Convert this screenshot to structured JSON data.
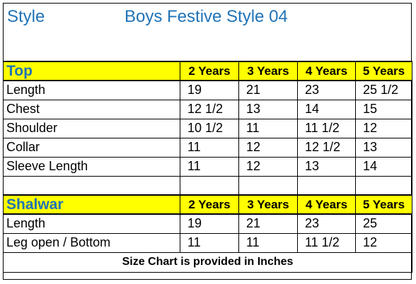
{
  "header": {
    "style_label": "Style",
    "title": "Boys Festive Style 04"
  },
  "sizes": [
    "2 Years",
    "3 Years",
    "4 Years",
    "5 Years"
  ],
  "top": {
    "label": "Top",
    "rows": [
      {
        "name": "Length",
        "values": [
          "19",
          "21",
          "23",
          "25 1/2"
        ]
      },
      {
        "name": "Chest",
        "values": [
          "12 1/2",
          "13",
          "14",
          "15"
        ]
      },
      {
        "name": "Shoulder",
        "values": [
          "10 1/2",
          "11",
          "11 1/2",
          "12"
        ]
      },
      {
        "name": "Collar",
        "values": [
          "11",
          "12",
          "12 1/2",
          "13"
        ]
      },
      {
        "name": "Sleeve Length",
        "values": [
          "11",
          "12",
          "13",
          "14"
        ]
      }
    ]
  },
  "shalwar": {
    "label": "Shalwar",
    "rows": [
      {
        "name": "Length",
        "values": [
          "19",
          "21",
          "23",
          "25"
        ]
      },
      {
        "name": "Leg open / Bottom",
        "values": [
          "11",
          "11",
          "11 1/2",
          "12"
        ]
      }
    ]
  },
  "footer": {
    "note": "Size Chart is provided in Inches"
  },
  "colors": {
    "heading_blue": "#1f73b7",
    "header_fill": "#ffff00"
  }
}
